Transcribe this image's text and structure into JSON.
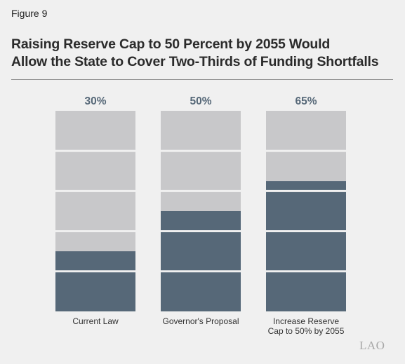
{
  "figure_label": "Figure 9",
  "title_line1": "Raising Reserve Cap to 50 Percent by 2055 Would",
  "title_line2": "Allow the State to Cover Two-Thirds of Funding Shortfalls",
  "logo": "LAO",
  "colors": {
    "covered": "#566878",
    "uncovered": "#c8c8ca",
    "percent_label": "#566878",
    "segment_divider": "#f0f0f0"
  },
  "chart_data": {
    "type": "bar",
    "stacked_to": 100,
    "segments_per_bar": 5,
    "categories": [
      "Current Law",
      "Governor's Proposal",
      [
        "Increase Reserve",
        "Cap to 50% by 2055"
      ]
    ],
    "values": [
      30,
      50,
      65
    ],
    "value_labels": [
      "30%",
      "50%",
      "65%"
    ],
    "ylim": [
      0,
      100
    ]
  }
}
